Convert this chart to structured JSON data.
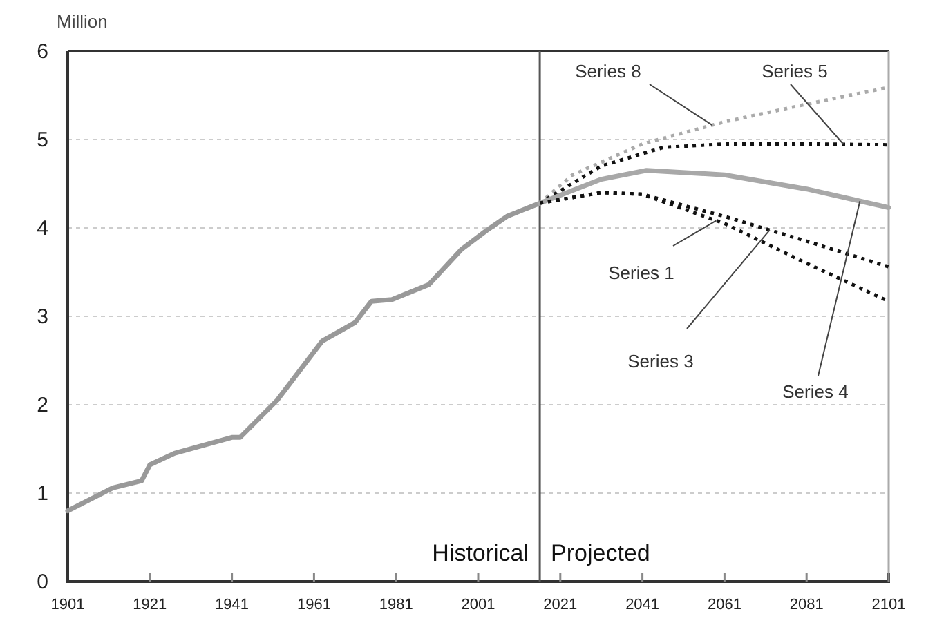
{
  "chart_data": {
    "type": "line",
    "ylabel": "Million",
    "xlim": [
      1901,
      2101
    ],
    "ylim": [
      0,
      6
    ],
    "xticks": [
      1901,
      1921,
      1941,
      1961,
      1981,
      2001,
      2021,
      2041,
      2061,
      2081,
      2101
    ],
    "yticks": [
      0,
      1,
      2,
      3,
      4,
      5,
      6
    ],
    "grid": "y",
    "ref_lines": [
      {
        "axis": "x",
        "value": 2016,
        "color": "#555555"
      }
    ],
    "annotations": [
      "Historical",
      "Projected"
    ],
    "series": [
      {
        "color": "#999999",
        "line_style": "solid",
        "x": [
          1901,
          1912,
          1919,
          1921,
          1927,
          1941,
          1943,
          1952,
          1963,
          1971,
          1975,
          1980,
          1989,
          1997,
          2003,
          2008,
          2016
        ],
        "values": [
          0.8,
          1.06,
          1.14,
          1.32,
          1.45,
          1.63,
          1.63,
          2.05,
          2.72,
          2.93,
          3.17,
          3.19,
          3.36,
          3.76,
          3.97,
          4.13,
          4.28
        ]
      },
      {
        "name": "Series 8",
        "color": "#aaaaaa",
        "line_style": "dotted",
        "x": [
          2016,
          2024,
          2041,
          2061,
          2081,
          2101
        ],
        "values": [
          4.28,
          4.6,
          4.95,
          5.2,
          5.4,
          5.59
        ]
      },
      {
        "name": "Series 5",
        "color": "#111111",
        "line_style": "dotted",
        "x": [
          2016,
          2031,
          2046,
          2061,
          2081,
          2101
        ],
        "values": [
          4.28,
          4.7,
          4.91,
          4.95,
          4.95,
          4.94
        ]
      },
      {
        "name": "Series 4",
        "color": "#a8a8a8",
        "line_style": "solid",
        "x": [
          2016,
          2031,
          2042,
          2061,
          2081,
          2101
        ],
        "values": [
          4.28,
          4.55,
          4.65,
          4.6,
          4.44,
          4.23
        ]
      },
      {
        "name": "Series 1",
        "color": "#111111",
        "line_style": "dotted",
        "x": [
          2016,
          2031,
          2041,
          2061,
          2081,
          2101
        ],
        "values": [
          4.28,
          4.4,
          4.38,
          4.05,
          3.6,
          3.17
        ]
      },
      {
        "name": "Series 3",
        "color": "#111111",
        "line_style": "dotted",
        "x": [
          2016,
          2031,
          2041,
          2061,
          2081,
          2101
        ],
        "values": [
          4.28,
          4.4,
          4.38,
          4.13,
          3.85,
          3.56
        ]
      }
    ]
  }
}
